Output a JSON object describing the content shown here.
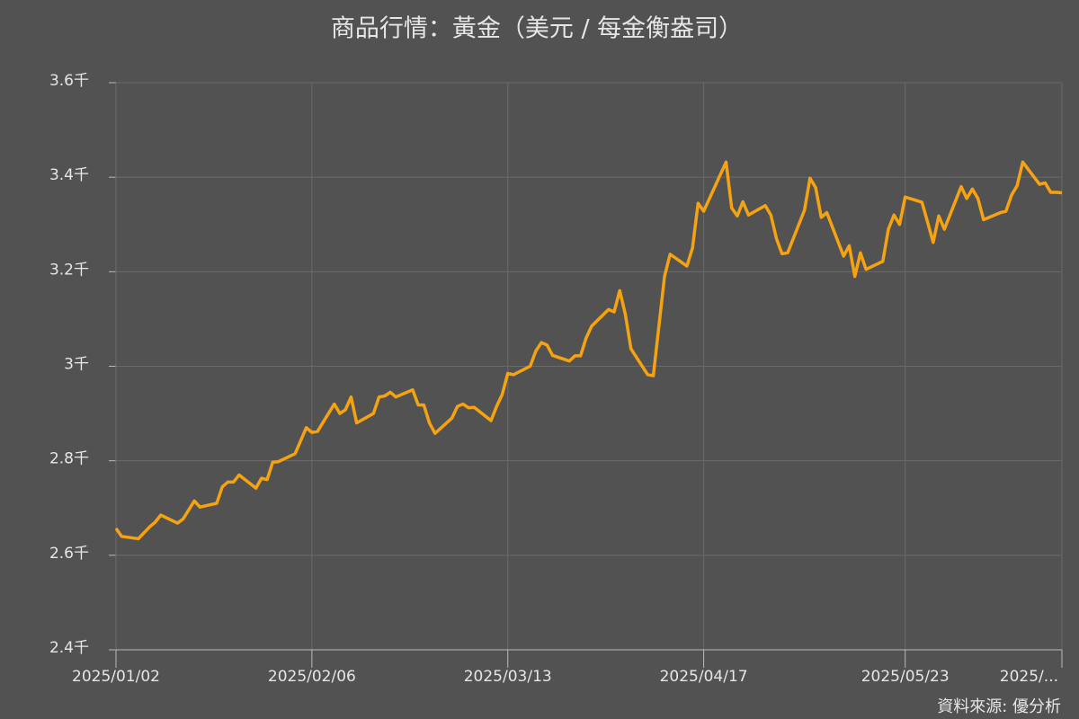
{
  "chart_data": {
    "type": "line",
    "title": "商品行情：黃金（美元 / 每金衡盎司）",
    "source": "資料來源: 優分析",
    "color": "#f5a310",
    "grid": true,
    "xlim": [
      "2025-01-02",
      "2025-06-20"
    ],
    "xticks": [
      {
        "value": "2025-01-02",
        "label": "2025/01/02"
      },
      {
        "value": "2025-02-06",
        "label": "2025/02/06"
      },
      {
        "value": "2025-03-13",
        "label": "2025/03/13"
      },
      {
        "value": "2025-04-17",
        "label": "2025/04/17"
      },
      {
        "value": "2025-05-23",
        "label": "2025/05/23"
      },
      {
        "value": "2025-06-20",
        "label": "2025/..."
      }
    ],
    "ylim": [
      2.4,
      3.6
    ],
    "yticks": [
      {
        "value": 2.4,
        "label": "2.4千"
      },
      {
        "value": 2.6,
        "label": "2.6千"
      },
      {
        "value": 2.8,
        "label": "2.8千"
      },
      {
        "value": 3,
        "label": "3千"
      },
      {
        "value": 3.2,
        "label": "3.2千"
      },
      {
        "value": 3.4,
        "label": "3.4千"
      },
      {
        "value": 3.6,
        "label": "3.6千"
      }
    ],
    "x": [
      "2025-01-02",
      "2025-01-03",
      "2025-01-06",
      "2025-01-08",
      "2025-01-09",
      "2025-01-10",
      "2025-01-13",
      "2025-01-14",
      "2025-01-16",
      "2025-01-17",
      "2025-01-20",
      "2025-01-21",
      "2025-01-22",
      "2025-01-23",
      "2025-01-24",
      "2025-01-27",
      "2025-01-28",
      "2025-01-29",
      "2025-01-30",
      "2025-01-31",
      "2025-02-03",
      "2025-02-05",
      "2025-02-06",
      "2025-02-07",
      "2025-02-10",
      "2025-02-11",
      "2025-02-12",
      "2025-02-13",
      "2025-02-14",
      "2025-02-17",
      "2025-02-18",
      "2025-02-19",
      "2025-02-20",
      "2025-02-21",
      "2025-02-24",
      "2025-02-25",
      "2025-02-26",
      "2025-02-27",
      "2025-02-28",
      "2025-03-03",
      "2025-03-04",
      "2025-03-05",
      "2025-03-06",
      "2025-03-07",
      "2025-03-10",
      "2025-03-11",
      "2025-03-12",
      "2025-03-13",
      "2025-03-14",
      "2025-03-17",
      "2025-03-18",
      "2025-03-19",
      "2025-03-20",
      "2025-03-21",
      "2025-03-24",
      "2025-03-25",
      "2025-03-26",
      "2025-03-27",
      "2025-03-28",
      "2025-03-31",
      "2025-04-01",
      "2025-04-02",
      "2025-04-03",
      "2025-04-04",
      "2025-04-07",
      "2025-04-08",
      "2025-04-09",
      "2025-04-10",
      "2025-04-11",
      "2025-04-14",
      "2025-04-15",
      "2025-04-16",
      "2025-04-17",
      "2025-04-21",
      "2025-04-22",
      "2025-04-23",
      "2025-04-24",
      "2025-04-25",
      "2025-04-28",
      "2025-04-29",
      "2025-04-30",
      "2025-05-01",
      "2025-05-02",
      "2025-05-05",
      "2025-05-06",
      "2025-05-07",
      "2025-05-08",
      "2025-05-09",
      "2025-05-12",
      "2025-05-13",
      "2025-05-14",
      "2025-05-15",
      "2025-05-16",
      "2025-05-19",
      "2025-05-20",
      "2025-05-21",
      "2025-05-22",
      "2025-05-23",
      "2025-05-26",
      "2025-05-27",
      "2025-05-28",
      "2025-05-29",
      "2025-05-30",
      "2025-06-02",
      "2025-06-03",
      "2025-06-04",
      "2025-06-05",
      "2025-06-06",
      "2025-06-09",
      "2025-06-10",
      "2025-06-11",
      "2025-06-12",
      "2025-06-13",
      "2025-06-16",
      "2025-06-17",
      "2025-06-18",
      "2025-06-19",
      "2025-06-20"
    ],
    "values": [
      2.657,
      2.64,
      2.635,
      2.66,
      2.67,
      2.685,
      2.668,
      2.677,
      2.715,
      2.702,
      2.71,
      2.745,
      2.755,
      2.755,
      2.77,
      2.742,
      2.763,
      2.76,
      2.797,
      2.798,
      2.815,
      2.87,
      2.86,
      2.862,
      2.92,
      2.9,
      2.908,
      2.935,
      2.88,
      2.9,
      2.935,
      2.937,
      2.945,
      2.935,
      2.95,
      2.918,
      2.918,
      2.88,
      2.858,
      2.89,
      2.915,
      2.92,
      2.912,
      2.913,
      2.885,
      2.915,
      2.94,
      2.985,
      2.982,
      3.0,
      3.032,
      3.05,
      3.045,
      3.023,
      3.011,
      3.022,
      3.022,
      3.06,
      3.085,
      3.12,
      3.115,
      3.16,
      3.11,
      3.037,
      2.982,
      2.98,
      3.085,
      3.19,
      3.237,
      3.212,
      3.25,
      3.345,
      3.328,
      3.432,
      3.335,
      3.318,
      3.348,
      3.32,
      3.34,
      3.32,
      3.27,
      3.238,
      3.24,
      3.33,
      3.398,
      3.378,
      3.315,
      3.325,
      3.233,
      3.255,
      3.19,
      3.24,
      3.205,
      3.222,
      3.29,
      3.32,
      3.3,
      3.358,
      3.347,
      3.305,
      3.262,
      3.318,
      3.29,
      3.38,
      3.355,
      3.375,
      3.355,
      3.31,
      3.325,
      3.328,
      3.362,
      3.382,
      3.432,
      3.385,
      3.388,
      3.368,
      3.368,
      3.367
    ]
  }
}
